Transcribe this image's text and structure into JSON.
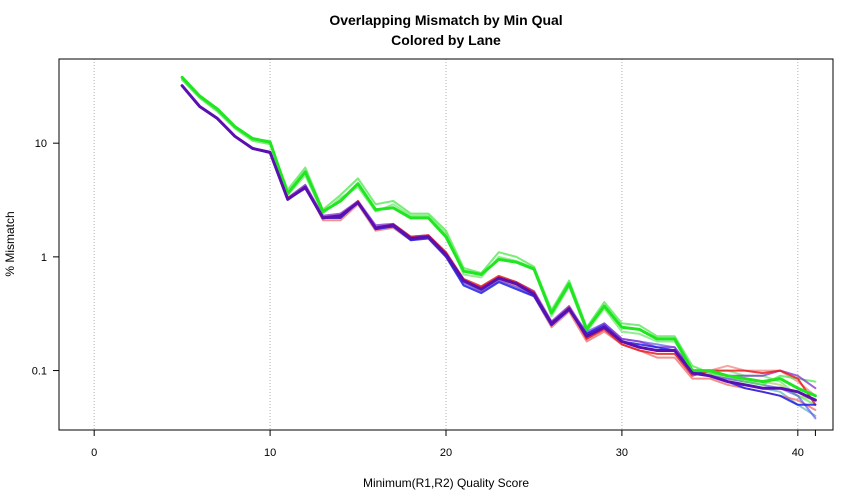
{
  "chart_data": {
    "type": "line",
    "title": "Overlapping Mismatch by Min Qual",
    "subtitle": "Colored by Lane",
    "xlabel": "Minimum(R1,R2) Quality Score",
    "ylabel": "% Mismatch",
    "y_scale": "log",
    "xlim": [
      -2,
      42
    ],
    "ylim": [
      0.03,
      55
    ],
    "x_ticks": [
      0,
      10,
      20,
      30,
      40,
      41
    ],
    "x_tick_labels": [
      "0",
      "10",
      "20",
      "30",
      "40",
      ""
    ],
    "y_ticks": [
      0.1,
      1,
      10
    ],
    "y_tick_labels": [
      "0.1",
      "1",
      "10"
    ],
    "grid": {
      "vertical_dotted_at": [
        0,
        10,
        20,
        30,
        40
      ]
    },
    "x": [
      5,
      6,
      7,
      8,
      9,
      10,
      11,
      12,
      13,
      14,
      15,
      16,
      17,
      18,
      19,
      20,
      21,
      22,
      23,
      24,
      25,
      26,
      27,
      28,
      29,
      30,
      31,
      32,
      33,
      34,
      35,
      36,
      37,
      38,
      39,
      40,
      41
    ],
    "series": [
      {
        "color": "#1fe61f",
        "opacity": 1.0,
        "width": 3,
        "values": [
          38,
          26,
          20,
          14,
          11,
          10.2,
          3.6,
          5.6,
          2.5,
          3.1,
          4.4,
          2.6,
          2.7,
          2.2,
          2.2,
          1.5,
          0.75,
          0.7,
          0.95,
          0.9,
          0.78,
          0.32,
          0.58,
          0.23,
          0.37,
          0.24,
          0.23,
          0.19,
          0.19,
          0.1,
          0.1,
          0.09,
          0.085,
          0.08,
          0.085,
          0.07,
          0.06
        ]
      },
      {
        "color": "#4ce64c",
        "opacity": 0.75,
        "width": 2,
        "values": [
          36,
          25,
          19,
          13.5,
          10.5,
          9.8,
          3.9,
          6.1,
          2.6,
          3.5,
          4.9,
          2.9,
          3.1,
          2.4,
          2.4,
          1.7,
          0.8,
          0.72,
          1.1,
          1.0,
          0.82,
          0.34,
          0.62,
          0.24,
          0.4,
          0.26,
          0.25,
          0.2,
          0.2,
          0.11,
          0.095,
          0.09,
          0.08,
          0.075,
          0.09,
          0.085,
          0.08
        ]
      },
      {
        "color": "#66e666",
        "opacity": 0.7,
        "width": 2,
        "values": [
          37,
          25.5,
          19.5,
          14,
          10.8,
          10.5,
          3.5,
          5.2,
          2.4,
          3.3,
          4.1,
          2.5,
          2.9,
          2.3,
          2.3,
          1.6,
          0.7,
          0.66,
          1.0,
          0.92,
          0.8,
          0.3,
          0.55,
          0.22,
          0.35,
          0.22,
          0.21,
          0.18,
          0.18,
          0.1,
          0.1,
          0.1,
          0.09,
          0.09,
          0.08,
          0.06,
          0.05
        ]
      },
      {
        "color": "#5a10b0",
        "opacity": 1.0,
        "width": 3,
        "values": [
          32,
          21,
          16.5,
          11.5,
          9,
          8.3,
          3.2,
          4.1,
          2.2,
          2.3,
          3.0,
          1.8,
          1.9,
          1.45,
          1.5,
          1.05,
          0.62,
          0.52,
          0.65,
          0.58,
          0.47,
          0.26,
          0.35,
          0.2,
          0.24,
          0.18,
          0.16,
          0.15,
          0.15,
          0.095,
          0.09,
          0.08,
          0.075,
          0.07,
          0.07,
          0.065,
          0.055
        ]
      },
      {
        "color": "#e61f1f",
        "opacity": 0.85,
        "width": 2,
        "values": [
          32,
          21,
          16.5,
          11.5,
          9,
          8.4,
          3.3,
          4.0,
          2.2,
          2.2,
          3.1,
          1.75,
          1.95,
          1.5,
          1.55,
          1.1,
          0.64,
          0.55,
          0.68,
          0.6,
          0.49,
          0.25,
          0.36,
          0.19,
          0.23,
          0.17,
          0.15,
          0.14,
          0.14,
          0.09,
          0.1,
          0.1,
          0.1,
          0.095,
          0.1,
          0.085,
          0.05
        ]
      },
      {
        "color": "#f06060",
        "opacity": 0.7,
        "width": 2,
        "values": [
          32,
          21,
          16.5,
          11.5,
          9,
          8.3,
          3.3,
          4.2,
          2.1,
          2.1,
          2.9,
          1.7,
          1.8,
          1.4,
          1.5,
          1.0,
          0.6,
          0.5,
          0.62,
          0.55,
          0.45,
          0.24,
          0.33,
          0.18,
          0.22,
          0.17,
          0.15,
          0.13,
          0.13,
          0.085,
          0.085,
          0.075,
          0.07,
          0.065,
          0.06,
          0.055,
          0.045
        ]
      },
      {
        "color": "#f08080",
        "opacity": 0.7,
        "width": 2,
        "values": [
          32,
          21,
          16.5,
          11.5,
          9,
          8.3,
          3.3,
          4.1,
          2.2,
          2.2,
          3.0,
          1.8,
          1.9,
          1.45,
          1.5,
          1.05,
          0.63,
          0.52,
          0.64,
          0.57,
          0.46,
          0.26,
          0.34,
          0.19,
          0.24,
          0.18,
          0.16,
          0.15,
          0.15,
          0.1,
          0.1,
          0.11,
          0.1,
          0.1,
          0.1,
          0.08,
          0.06
        ]
      },
      {
        "color": "#1f1fe6",
        "opacity": 0.85,
        "width": 2,
        "values": [
          32,
          21,
          16.5,
          11.5,
          9,
          8.2,
          3.2,
          4.0,
          2.2,
          2.2,
          3.0,
          1.75,
          1.85,
          1.4,
          1.45,
          1.0,
          0.56,
          0.48,
          0.6,
          0.52,
          0.45,
          0.25,
          0.34,
          0.21,
          0.25,
          0.18,
          0.17,
          0.16,
          0.15,
          0.1,
          0.09,
          0.08,
          0.07,
          0.065,
          0.06,
          0.05,
          0.05
        ]
      },
      {
        "color": "#5a5af0",
        "opacity": 0.7,
        "width": 2,
        "values": [
          32,
          21,
          16.5,
          11.5,
          9,
          8.3,
          3.2,
          4.1,
          2.25,
          2.25,
          3.0,
          1.8,
          1.85,
          1.42,
          1.48,
          1.02,
          0.58,
          0.5,
          0.62,
          0.54,
          0.46,
          0.25,
          0.35,
          0.22,
          0.26,
          0.19,
          0.18,
          0.17,
          0.16,
          0.1,
          0.09,
          0.085,
          0.08,
          0.075,
          0.07,
          0.06,
          0.038
        ]
      },
      {
        "color": "#8a3ad0",
        "opacity": 0.8,
        "width": 2,
        "values": [
          32,
          21,
          16.5,
          11.5,
          9,
          8.3,
          3.3,
          4.3,
          2.3,
          2.4,
          3.1,
          1.9,
          1.95,
          1.5,
          1.55,
          1.08,
          0.6,
          0.54,
          0.66,
          0.6,
          0.5,
          0.27,
          0.37,
          0.21,
          0.26,
          0.19,
          0.18,
          0.16,
          0.16,
          0.1,
          0.1,
          0.09,
          0.09,
          0.09,
          0.1,
          0.09,
          0.07
        ]
      },
      {
        "color": "#a0c040",
        "opacity": 0.6,
        "width": 2,
        "values": [
          null,
          null,
          null,
          null,
          null,
          null,
          null,
          null,
          null,
          null,
          null,
          null,
          null,
          null,
          null,
          null,
          null,
          null,
          null,
          null,
          null,
          null,
          null,
          null,
          null,
          null,
          null,
          null,
          null,
          0.1,
          0.095,
          0.085,
          0.08,
          0.08,
          0.075,
          0.06,
          0.055
        ]
      },
      {
        "color": "#40a0b0",
        "opacity": 0.6,
        "width": 2,
        "values": [
          null,
          null,
          null,
          null,
          null,
          null,
          null,
          null,
          null,
          null,
          null,
          null,
          null,
          null,
          null,
          null,
          null,
          null,
          null,
          null,
          null,
          null,
          null,
          null,
          null,
          null,
          null,
          null,
          null,
          0.1,
          0.09,
          0.08,
          0.075,
          0.07,
          0.065,
          0.05,
          0.04
        ]
      }
    ]
  }
}
